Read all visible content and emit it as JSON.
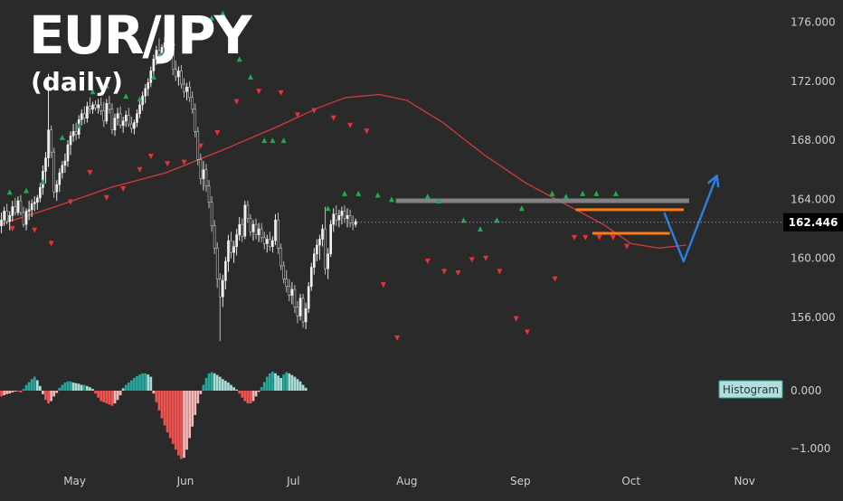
{
  "chart_data": {
    "type": "candlestick",
    "title": "EUR/JPY",
    "subtitle": "(daily)",
    "colors": {
      "background": "#2a2a2a",
      "bull_candle": "#f2f2f2",
      "bear_candle": "#111111",
      "moving_average": "#d13b3b",
      "buy_marker": "#22aa55",
      "sell_marker": "#e0353a",
      "resistance_line": "#8c8c8c",
      "range_lines": "#ff7a1a",
      "projection_arrow": "#2d7fe0",
      "hist_pos_strong": "#26a69a",
      "hist_pos_weak": "#a7dcd5",
      "hist_neg_strong": "#ef5350",
      "hist_neg_weak": "#f7b6b6",
      "price_label_bg": "#000000"
    },
    "price_axis": {
      "range": [
        153.0,
        177.5
      ],
      "ticks": [
        "176.000",
        "172.000",
        "168.000",
        "164.000",
        "160.000",
        "156.000"
      ],
      "tick_values": [
        176,
        172,
        168,
        164,
        160,
        156
      ],
      "last_price": "162.446",
      "last_price_value": 162.446
    },
    "time_axis": {
      "labels": [
        "May",
        "Jun",
        "Jul",
        "Aug",
        "Sep",
        "Oct",
        "Nov"
      ],
      "label_days": [
        27,
        67,
        106,
        147,
        188,
        228,
        269
      ],
      "start_day": 0,
      "end_day": 283
    },
    "histogram": {
      "label": "Histogram",
      "range": [
        -1.25,
        0.5
      ],
      "ticks": [
        "0.000",
        "−1.000"
      ],
      "tick_values": [
        0,
        -1
      ],
      "values": [
        -0.1,
        -0.08,
        -0.06,
        -0.05,
        -0.03,
        0.0,
        -0.01,
        -0.03,
        0.03,
        0.1,
        0.15,
        0.2,
        0.24,
        0.18,
        0.08,
        -0.06,
        -0.16,
        -0.22,
        -0.18,
        -0.1,
        -0.04,
        0.05,
        0.1,
        0.14,
        0.16,
        0.16,
        0.14,
        0.13,
        0.12,
        0.1,
        0.1,
        0.08,
        0.06,
        0.03,
        -0.05,
        -0.12,
        -0.18,
        -0.2,
        -0.22,
        -0.24,
        -0.26,
        -0.22,
        -0.16,
        -0.08,
        0.04,
        0.1,
        0.14,
        0.18,
        0.22,
        0.25,
        0.28,
        0.3,
        0.3,
        0.28,
        0.24,
        -0.05,
        -0.2,
        -0.34,
        -0.48,
        -0.6,
        -0.72,
        -0.82,
        -0.92,
        -1.02,
        -1.12,
        -1.18,
        -1.16,
        -1.02,
        -0.82,
        -0.62,
        -0.42,
        -0.22,
        -0.06,
        0.1,
        0.22,
        0.3,
        0.32,
        0.3,
        0.27,
        0.24,
        0.2,
        0.17,
        0.14,
        0.1,
        0.06,
        0.02,
        -0.05,
        -0.12,
        -0.18,
        -0.22,
        -0.22,
        -0.18,
        -0.1,
        -0.02,
        0.06,
        0.15,
        0.24,
        0.3,
        0.33,
        0.3,
        0.26,
        0.22,
        0.28,
        0.32,
        0.3,
        0.27,
        0.24,
        0.2,
        0.16,
        0.1,
        0.05
      ]
    },
    "candles": [
      [
        162.2,
        163.1,
        161.7,
        162.6
      ],
      [
        162.6,
        163.5,
        162.2,
        163.2
      ],
      [
        163.2,
        163.7,
        162.3,
        162.5
      ],
      [
        162.5,
        163.2,
        161.9,
        162.9
      ],
      [
        162.9,
        163.9,
        162.5,
        163.5
      ],
      [
        163.5,
        164.1,
        162.9,
        163.1
      ],
      [
        163.1,
        164.2,
        162.9,
        163.9
      ],
      [
        163.9,
        164.3,
        162.9,
        163.1
      ],
      [
        163.1,
        163.5,
        162.1,
        162.3
      ],
      [
        162.3,
        163.4,
        161.9,
        163.2
      ],
      [
        163.2,
        163.9,
        162.6,
        163.3
      ],
      [
        163.3,
        164.0,
        162.8,
        163.7
      ],
      [
        163.7,
        164.2,
        163.2,
        163.8
      ],
      [
        163.8,
        164.3,
        163.3,
        164.1
      ],
      [
        164.1,
        165.1,
        163.8,
        164.8
      ],
      [
        164.8,
        166.3,
        164.3,
        165.9
      ],
      [
        165.9,
        167.2,
        165.1,
        166.8
      ],
      [
        166.8,
        172.5,
        166.2,
        168.7
      ],
      [
        168.7,
        169.0,
        166.8,
        167.2
      ],
      [
        167.2,
        167.5,
        164.1,
        164.5
      ],
      [
        164.5,
        165.3,
        163.9,
        165.0
      ],
      [
        165.0,
        166.1,
        164.5,
        165.8
      ],
      [
        165.8,
        166.6,
        165.4,
        166.3
      ],
      [
        166.3,
        167.1,
        165.8,
        166.6
      ],
      [
        166.6,
        168.0,
        166.2,
        167.7
      ],
      [
        167.7,
        168.6,
        167.0,
        168.3
      ],
      [
        168.3,
        169.1,
        167.9,
        168.6
      ],
      [
        168.6,
        169.2,
        168.0,
        168.4
      ],
      [
        168.4,
        169.7,
        168.1,
        169.4
      ],
      [
        169.4,
        170.1,
        169.0,
        169.8
      ],
      [
        169.8,
        170.3,
        169.1,
        169.5
      ],
      [
        169.5,
        170.6,
        169.2,
        170.3
      ],
      [
        170.3,
        170.9,
        169.8,
        170.1
      ],
      [
        170.1,
        170.6,
        169.8,
        170.4
      ],
      [
        170.4,
        170.7,
        170.0,
        170.2
      ],
      [
        170.2,
        170.8,
        169.8,
        170.4
      ],
      [
        170.4,
        170.9,
        169.7,
        170.0
      ],
      [
        170.0,
        170.6,
        168.9,
        169.3
      ],
      [
        169.3,
        170.8,
        169.1,
        170.5
      ],
      [
        170.5,
        171.0,
        169.8,
        170.1
      ],
      [
        170.1,
        170.5,
        168.4,
        168.7
      ],
      [
        168.7,
        169.8,
        168.3,
        169.5
      ],
      [
        169.5,
        170.2,
        169.0,
        169.8
      ],
      [
        169.8,
        170.3,
        168.8,
        169.0
      ],
      [
        169.0,
        169.6,
        168.5,
        169.3
      ],
      [
        169.3,
        170.0,
        168.9,
        169.7
      ],
      [
        169.7,
        170.2,
        168.9,
        169.1
      ],
      [
        169.1,
        169.6,
        168.5,
        168.8
      ],
      [
        168.8,
        169.4,
        168.4,
        169.2
      ],
      [
        169.2,
        170.1,
        168.9,
        169.8
      ],
      [
        169.8,
        170.7,
        169.5,
        170.4
      ],
      [
        170.4,
        171.3,
        170.0,
        171.0
      ],
      [
        171.0,
        171.8,
        170.5,
        171.5
      ],
      [
        171.5,
        172.2,
        171.0,
        171.9
      ],
      [
        171.9,
        173.0,
        171.6,
        172.7
      ],
      [
        172.7,
        173.8,
        172.4,
        173.5
      ],
      [
        173.5,
        174.4,
        173.1,
        174.1
      ],
      [
        174.1,
        174.9,
        173.4,
        173.8
      ],
      [
        173.8,
        174.5,
        173.2,
        174.3
      ],
      [
        174.3,
        175.0,
        173.9,
        174.6
      ],
      [
        174.6,
        175.3,
        174.2,
        174.8
      ],
      [
        174.8,
        175.6,
        174.3,
        175.2
      ],
      [
        175.2,
        175.5,
        172.4,
        172.8
      ],
      [
        172.8,
        173.4,
        172.0,
        172.3
      ],
      [
        172.3,
        173.0,
        171.7,
        172.7
      ],
      [
        172.7,
        173.1,
        171.5,
        171.8
      ],
      [
        171.8,
        172.2,
        170.9,
        171.3
      ],
      [
        171.3,
        171.9,
        170.7,
        171.6
      ],
      [
        171.6,
        172.0,
        170.6,
        170.9
      ],
      [
        170.9,
        171.3,
        169.8,
        170.1
      ],
      [
        170.1,
        170.5,
        168.2,
        168.6
      ],
      [
        168.6,
        168.9,
        166.3,
        166.7
      ],
      [
        166.7,
        167.1,
        165.0,
        165.4
      ],
      [
        165.4,
        166.6,
        164.6,
        166.0
      ],
      [
        166.0,
        166.4,
        164.5,
        164.9
      ],
      [
        164.9,
        165.3,
        163.4,
        163.8
      ],
      [
        163.8,
        164.2,
        161.8,
        162.2
      ],
      [
        162.2,
        162.6,
        160.3,
        160.7
      ],
      [
        160.7,
        161.1,
        158.0,
        158.6
      ],
      [
        158.6,
        159.0,
        154.4,
        157.4
      ],
      [
        157.4,
        158.9,
        156.7,
        158.5
      ],
      [
        158.5,
        160.1,
        157.9,
        159.8
      ],
      [
        159.8,
        161.6,
        159.1,
        161.2
      ],
      [
        161.2,
        161.8,
        160.0,
        160.4
      ],
      [
        160.4,
        161.2,
        159.7,
        160.8
      ],
      [
        160.8,
        162.0,
        160.2,
        161.6
      ],
      [
        161.6,
        162.8,
        161.2,
        162.3
      ],
      [
        162.3,
        162.7,
        161.1,
        161.5
      ],
      [
        161.5,
        163.9,
        161.3,
        163.6
      ],
      [
        163.6,
        163.9,
        162.4,
        162.7
      ],
      [
        162.7,
        163.0,
        161.5,
        161.8
      ],
      [
        161.8,
        162.6,
        161.2,
        162.3
      ],
      [
        162.3,
        162.7,
        161.3,
        161.6
      ],
      [
        161.6,
        162.4,
        161.1,
        162.0
      ],
      [
        162.0,
        162.4,
        161.1,
        161.4
      ],
      [
        161.4,
        161.8,
        160.6,
        161.0
      ],
      [
        161.0,
        161.6,
        160.4,
        161.3
      ],
      [
        161.3,
        161.8,
        160.5,
        160.8
      ],
      [
        160.8,
        161.5,
        160.4,
        161.2
      ],
      [
        161.2,
        163.0,
        160.9,
        162.6
      ],
      [
        162.6,
        163.1,
        160.3,
        160.7
      ],
      [
        160.7,
        161.0,
        159.2,
        159.5
      ],
      [
        159.5,
        159.8,
        158.3,
        158.6
      ],
      [
        158.6,
        159.2,
        157.7,
        158.1
      ],
      [
        158.1,
        158.6,
        157.1,
        157.5
      ],
      [
        157.5,
        158.4,
        156.9,
        157.9
      ],
      [
        157.9,
        158.2,
        156.3,
        156.7
      ],
      [
        156.7,
        157.1,
        155.6,
        156.1
      ],
      [
        156.1,
        157.6,
        155.8,
        157.3
      ],
      [
        157.3,
        157.6,
        155.3,
        155.7
      ],
      [
        155.7,
        157.0,
        155.2,
        156.6
      ],
      [
        156.6,
        158.4,
        156.3,
        158.1
      ],
      [
        158.1,
        159.7,
        157.8,
        159.4
      ],
      [
        159.4,
        160.7,
        158.9,
        160.3
      ],
      [
        160.3,
        161.3,
        159.8,
        160.9
      ],
      [
        160.9,
        161.6,
        159.9,
        161.3
      ],
      [
        161.3,
        162.3,
        160.8,
        162.0
      ],
      [
        162.0,
        163.5,
        158.9,
        159.3
      ],
      [
        159.3,
        160.7,
        158.6,
        160.3
      ],
      [
        160.3,
        162.6,
        160.1,
        162.3
      ],
      [
        162.3,
        163.4,
        161.8,
        163.0
      ],
      [
        163.0,
        163.6,
        162.2,
        162.6
      ],
      [
        162.6,
        163.3,
        162.1,
        162.9
      ],
      [
        162.9,
        163.5,
        162.3,
        163.2
      ],
      [
        163.2,
        163.6,
        162.4,
        162.7
      ],
      [
        162.7,
        163.4,
        162.1,
        162.9
      ],
      [
        162.9,
        163.3,
        162.1,
        162.4
      ],
      [
        162.4,
        162.9,
        161.9,
        162.3
      ],
      [
        162.3,
        162.7,
        162.1,
        162.5
      ]
    ],
    "moving_average": [
      [
        0,
        162.3
      ],
      [
        20,
        163.5
      ],
      [
        40,
        164.8
      ],
      [
        60,
        165.8
      ],
      [
        80,
        167.3
      ],
      [
        100,
        168.9
      ],
      [
        115,
        170.2
      ],
      [
        125,
        170.9
      ],
      [
        137,
        171.1
      ],
      [
        147,
        170.7
      ],
      [
        160,
        169.2
      ],
      [
        175,
        167.0
      ],
      [
        190,
        165.1
      ],
      [
        205,
        163.6
      ],
      [
        218,
        162.3
      ],
      [
        228,
        161.0
      ],
      [
        238,
        160.7
      ],
      [
        248,
        160.9
      ]
    ],
    "buy_signals": [
      [
        3,
        164.5
      ],
      [
        9,
        164.6
      ],
      [
        15,
        165.2
      ],
      [
        22,
        168.2
      ],
      [
        28,
        169.0
      ],
      [
        33,
        171.3
      ],
      [
        38,
        171.7
      ],
      [
        45,
        171.0
      ],
      [
        50,
        170.8
      ],
      [
        55,
        172.3
      ],
      [
        58,
        173.8
      ],
      [
        62,
        174.6
      ],
      [
        67,
        175.4
      ],
      [
        71,
        176.1
      ],
      [
        76,
        176.3
      ],
      [
        80,
        176.6
      ],
      [
        86,
        173.5
      ],
      [
        90,
        172.3
      ],
      [
        95,
        168.0
      ],
      [
        98,
        168.0
      ],
      [
        102,
        168.0
      ],
      [
        118,
        163.4
      ],
      [
        124,
        164.4
      ],
      [
        129,
        164.4
      ],
      [
        136,
        164.3
      ],
      [
        141,
        164.0
      ],
      [
        154,
        164.2
      ],
      [
        158,
        163.9
      ],
      [
        167,
        162.6
      ],
      [
        173,
        162.0
      ],
      [
        179,
        162.6
      ],
      [
        188,
        163.4
      ],
      [
        199,
        164.4
      ],
      [
        204,
        164.2
      ],
      [
        210,
        164.4
      ],
      [
        215,
        164.4
      ],
      [
        222,
        164.4
      ]
    ],
    "sell_signals": [
      [
        4,
        162.0
      ],
      [
        12,
        161.9
      ],
      [
        18,
        161.0
      ],
      [
        25,
        163.8
      ],
      [
        32,
        165.8
      ],
      [
        38,
        164.1
      ],
      [
        44,
        164.7
      ],
      [
        50,
        166.0
      ],
      [
        54,
        166.9
      ],
      [
        60,
        166.4
      ],
      [
        66,
        166.5
      ],
      [
        72,
        167.6
      ],
      [
        78,
        168.5
      ],
      [
        85,
        170.6
      ],
      [
        93,
        171.3
      ],
      [
        101,
        171.2
      ],
      [
        107,
        169.7
      ],
      [
        113,
        170.0
      ],
      [
        120,
        169.5
      ],
      [
        126,
        169.0
      ],
      [
        132,
        168.6
      ],
      [
        138,
        158.2
      ],
      [
        143,
        154.6
      ],
      [
        154,
        159.8
      ],
      [
        160,
        159.1
      ],
      [
        165,
        159.0
      ],
      [
        170,
        159.9
      ],
      [
        175,
        160.0
      ],
      [
        180,
        159.1
      ],
      [
        186,
        155.9
      ],
      [
        190,
        155.0
      ],
      [
        200,
        158.6
      ],
      [
        207,
        161.4
      ],
      [
        211,
        161.4
      ],
      [
        216,
        161.4
      ],
      [
        221,
        161.4
      ],
      [
        226,
        160.8
      ]
    ],
    "annotations": {
      "resistance": {
        "price": 163.9,
        "from_day": 143,
        "to_day": 249
      },
      "range_top": {
        "price": 163.3,
        "from_day": 208,
        "to_day": 247
      },
      "range_bottom": {
        "price": 161.7,
        "from_day": 214,
        "to_day": 242
      },
      "projection_path": [
        [
          240,
          163.1
        ],
        [
          247,
          159.8
        ],
        [
          259,
          165.6
        ]
      ]
    }
  }
}
